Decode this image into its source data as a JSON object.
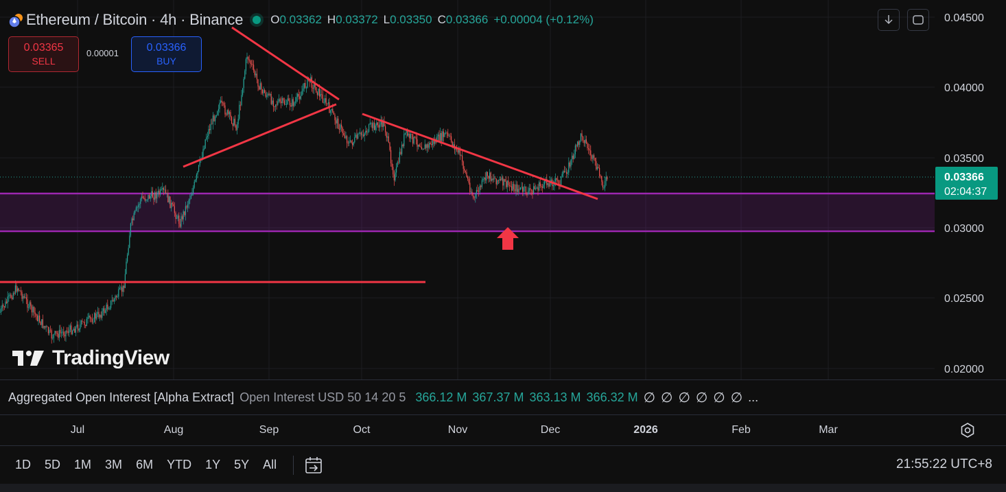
{
  "header": {
    "symbol_title": "Ethereum / Bitcoin · 4h · Binance",
    "ohlc": [
      {
        "k": "O",
        "v": "0.03362"
      },
      {
        "k": "H",
        "v": "0.03372"
      },
      {
        "k": "L",
        "v": "0.03350"
      },
      {
        "k": "C",
        "v": "0.03366"
      }
    ],
    "change": "+0.00004 (+0.12%)"
  },
  "trade": {
    "sell_price": "0.03365",
    "sell_label": "SELL",
    "spread": "0.00001",
    "buy_price": "0.03366",
    "buy_label": "BUY"
  },
  "price_scale": {
    "ticks": [
      "0.04500",
      "0.04000",
      "0.03500",
      "0.03000",
      "0.02500",
      "0.02000"
    ],
    "current_price": "0.03366",
    "countdown": "02:04:37"
  },
  "watermark": "TradingView",
  "indicator": {
    "name": "Aggregated Open Interest [Alpha Extract]",
    "params": "Open Interest USD 50 14 20 5",
    "values": [
      "366.12 M",
      "367.37 M",
      "363.13 M",
      "366.32 M"
    ],
    "null_glyph": "∅",
    "ellipsis": "..."
  },
  "time_axis": {
    "labels": [
      {
        "text": "Jul",
        "bold": false
      },
      {
        "text": "Aug",
        "bold": false
      },
      {
        "text": "Sep",
        "bold": false
      },
      {
        "text": "Oct",
        "bold": false
      },
      {
        "text": "Nov",
        "bold": false
      },
      {
        "text": "Dec",
        "bold": false
      },
      {
        "text": "2026",
        "bold": true
      },
      {
        "text": "Feb",
        "bold": false
      },
      {
        "text": "Mar",
        "bold": false
      }
    ]
  },
  "ranges": [
    "1D",
    "5D",
    "1M",
    "3M",
    "6M",
    "YTD",
    "1Y",
    "5Y",
    "All"
  ],
  "clock": "21:55:22 UTC+8",
  "colors": {
    "up": "#26a69a",
    "down": "#ef5350",
    "trendline": "#f23645",
    "zone": "#9c27b0",
    "current_price_bg": "#089981"
  },
  "icons": [
    "ethereum-icon",
    "bitcoin-icon",
    "download-icon",
    "fullscreen-icon",
    "tradingview-logo-icon",
    "settings-icon",
    "date-range-icon",
    "up-arrow-icon"
  ]
}
